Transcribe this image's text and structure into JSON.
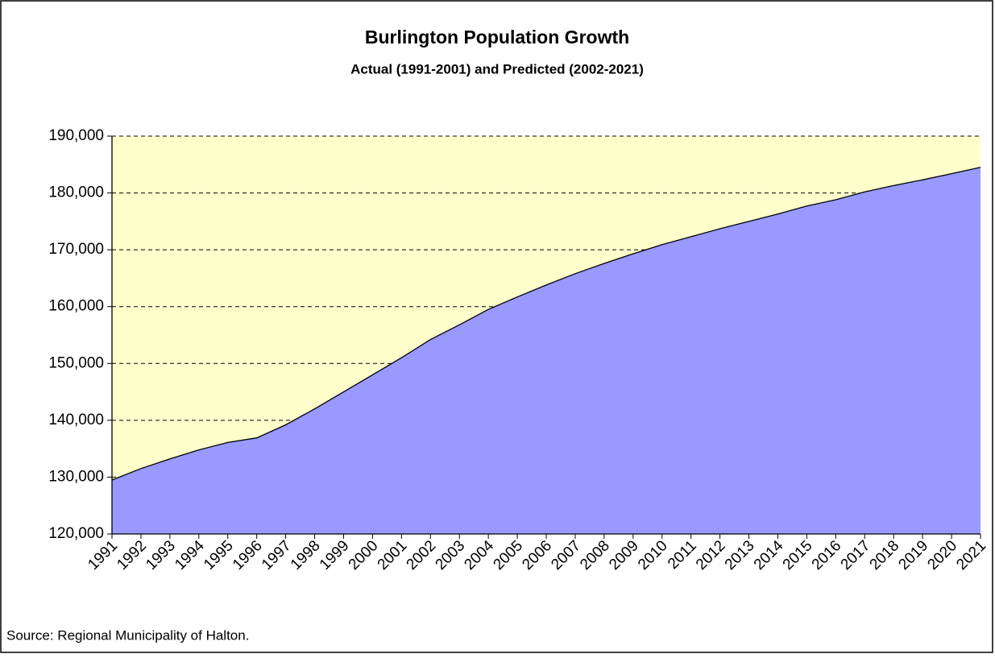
{
  "chart_data": {
    "type": "area",
    "title": "Burlington Population Growth",
    "subtitle": "Actual (1991-2001) and Predicted (2002-2021)",
    "source": "Source: Regional Municipality of Halton.",
    "categories": [
      "1991",
      "1992",
      "1993",
      "1994",
      "1995",
      "1996",
      "1997",
      "1998",
      "1999",
      "2000",
      "2001",
      "2002",
      "2003",
      "2004",
      "2005",
      "2006",
      "2007",
      "2008",
      "2009",
      "2010",
      "2011",
      "2012",
      "2013",
      "2014",
      "2015",
      "2016",
      "2017",
      "2018",
      "2019",
      "2020",
      "2021"
    ],
    "values": [
      129500,
      131500,
      133200,
      134800,
      136100,
      136900,
      139200,
      142000,
      145000,
      148000,
      151000,
      154200,
      156800,
      159500,
      161700,
      163800,
      165800,
      167600,
      169300,
      170900,
      172300,
      173700,
      175000,
      176300,
      177700,
      178800,
      180200,
      181300,
      182300,
      183400,
      184500
    ],
    "color": "#9999ff",
    "plot_background": "#ffffcc",
    "ylim": [
      120000,
      190000
    ],
    "yticks": [
      {
        "value": 120000,
        "label": "120,000"
      },
      {
        "value": 130000,
        "label": "130,000"
      },
      {
        "value": 140000,
        "label": "140,000"
      },
      {
        "value": 150000,
        "label": "150,000"
      },
      {
        "value": 160000,
        "label": "160,000"
      },
      {
        "value": 170000,
        "label": "170,000"
      },
      {
        "value": 180000,
        "label": "180,000"
      },
      {
        "value": 190000,
        "label": "190,000"
      }
    ],
    "grid": true
  }
}
